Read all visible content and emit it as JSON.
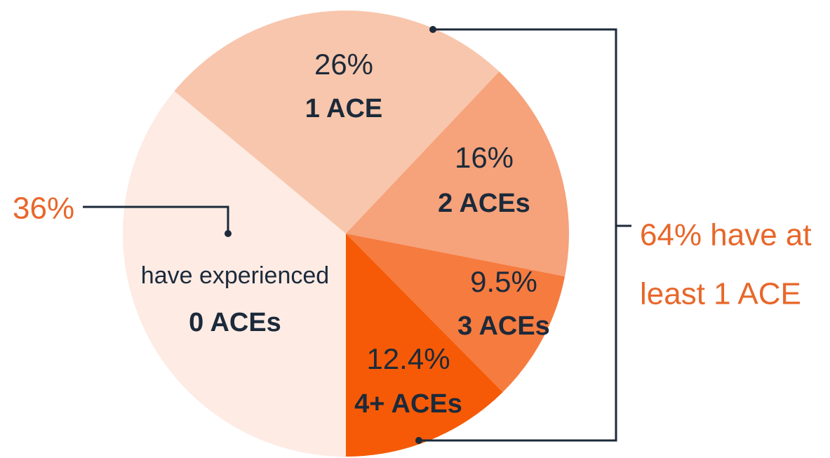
{
  "chart_data": {
    "type": "pie",
    "categories": [
      "0 ACEs",
      "1 ACE",
      "2 ACEs",
      "3 ACEs",
      "4+ ACEs"
    ],
    "values": [
      36,
      26,
      16,
      9.5,
      12.4
    ],
    "value_labels": [
      "36%",
      "26%",
      "16%",
      "9.5%",
      "12.4%"
    ],
    "colors": [
      "#fdebe4",
      "#f8c6ac",
      "#f6a27a",
      "#f67b3f",
      "#f65a06"
    ],
    "annotations": {
      "zero_prefix": "have experienced",
      "bracket": [
        "64% have at",
        "least 1 ACE"
      ]
    }
  }
}
